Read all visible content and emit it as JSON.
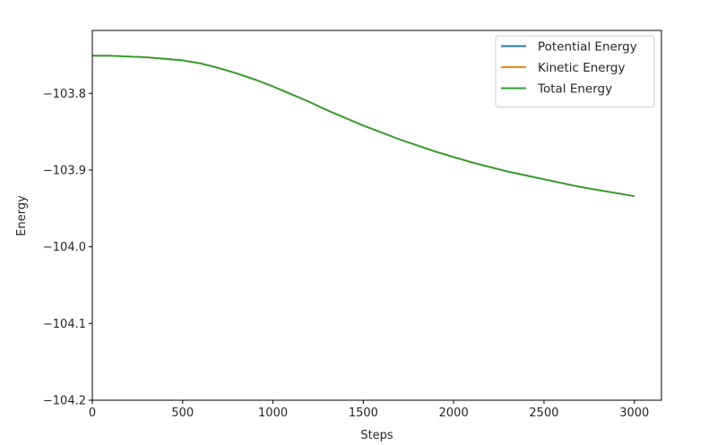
{
  "chart_data": {
    "type": "line",
    "xlabel": "Steps",
    "ylabel": "Energy",
    "xlim": [
      0,
      3150
    ],
    "ylim": [
      -104.2,
      -103.718
    ],
    "xticks": [
      0,
      500,
      1000,
      1500,
      2000,
      2500,
      3000
    ],
    "xtick_labels": [
      "0",
      "500",
      "1000",
      "1500",
      "2000",
      "2500",
      "3000"
    ],
    "yticks": [
      -103.8,
      -103.9,
      -104.0,
      -104.1,
      -104.2
    ],
    "ytick_labels": [
      "−103.8",
      "−103.9",
      "−104.0",
      "−104.1",
      "−104.2"
    ],
    "grid": false,
    "legend_position": "top-right",
    "x": [
      0,
      100,
      200,
      300,
      400,
      500,
      600,
      700,
      800,
      900,
      1000,
      1100,
      1200,
      1300,
      1400,
      1500,
      1600,
      1700,
      1800,
      1900,
      2000,
      2100,
      2200,
      2300,
      2400,
      2500,
      2600,
      2700,
      2800,
      2900,
      3000
    ],
    "series": [
      {
        "name": "Potential Energy",
        "color": "#1f77b4",
        "values": [
          -103.751,
          -103.751,
          -103.752,
          -103.753,
          -103.755,
          -103.757,
          -103.761,
          -103.767,
          -103.774,
          -103.782,
          -103.791,
          -103.801,
          -103.811,
          -103.822,
          -103.832,
          -103.842,
          -103.851,
          -103.86,
          -103.868,
          -103.876,
          -103.883,
          -103.89,
          -103.896,
          -103.902,
          -103.907,
          -103.912,
          -103.917,
          -103.922,
          -103.926,
          -103.93,
          -103.934
        ]
      },
      {
        "name": "Kinetic Energy",
        "color": "#ff7f0e",
        "values": [
          -103.751,
          -103.751,
          -103.752,
          -103.753,
          -103.755,
          -103.757,
          -103.761,
          -103.767,
          -103.774,
          -103.782,
          -103.791,
          -103.801,
          -103.811,
          -103.822,
          -103.832,
          -103.842,
          -103.851,
          -103.86,
          -103.868,
          -103.876,
          -103.883,
          -103.89,
          -103.896,
          -103.902,
          -103.907,
          -103.912,
          -103.917,
          -103.922,
          -103.926,
          -103.93,
          -103.934
        ]
      },
      {
        "name": "Total Energy",
        "color": "#2ca02c",
        "values": [
          -103.751,
          -103.751,
          -103.752,
          -103.753,
          -103.755,
          -103.757,
          -103.761,
          -103.767,
          -103.774,
          -103.782,
          -103.791,
          -103.801,
          -103.811,
          -103.822,
          -103.832,
          -103.842,
          -103.851,
          -103.86,
          -103.868,
          -103.876,
          -103.883,
          -103.89,
          -103.896,
          -103.902,
          -103.907,
          -103.912,
          -103.917,
          -103.922,
          -103.926,
          -103.93,
          -103.934
        ]
      }
    ]
  }
}
